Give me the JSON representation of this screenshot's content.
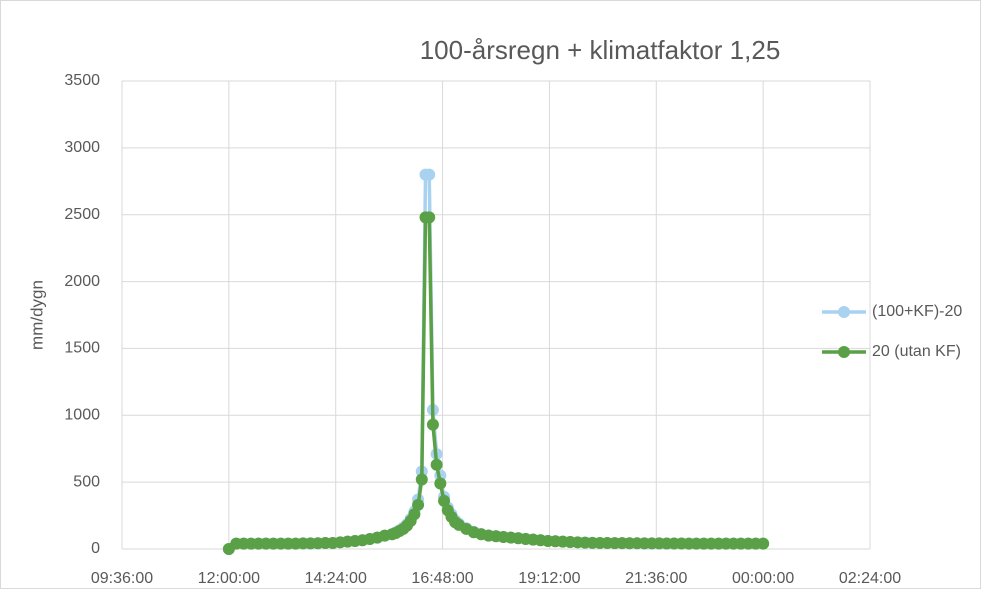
{
  "chart_data": {
    "type": "line",
    "title": "100-årsregn + klimatfaktor 1,25",
    "y_label": "mm/dygn",
    "x": [
      720,
      730,
      740,
      750,
      760,
      770,
      780,
      790,
      800,
      810,
      820,
      830,
      840,
      850,
      860,
      870,
      880,
      890,
      900,
      910,
      920,
      930,
      940,
      945,
      950,
      955,
      960,
      965,
      970,
      975,
      980,
      985,
      990,
      995,
      1000,
      1005,
      1010,
      1015,
      1020,
      1025,
      1030,
      1040,
      1050,
      1060,
      1070,
      1080,
      1090,
      1100,
      1110,
      1120,
      1130,
      1140,
      1150,
      1160,
      1170,
      1180,
      1190,
      1200,
      1210,
      1220,
      1230,
      1240,
      1250,
      1260,
      1270,
      1280,
      1290,
      1300,
      1310,
      1320,
      1330,
      1340,
      1350,
      1360,
      1370,
      1380,
      1390,
      1400,
      1410,
      1420,
      1430,
      1440
    ],
    "series": [
      {
        "name": "(100+KF)-20",
        "color": "#a9d2f0",
        "values": [
          0,
          40,
          40,
          40,
          40,
          40,
          40,
          40,
          40,
          40,
          42,
          42,
          43,
          45,
          45,
          50,
          55,
          60,
          65,
          75,
          85,
          100,
          110,
          125,
          140,
          160,
          185,
          225,
          280,
          370,
          580,
          2800,
          2800,
          1040,
          710,
          550,
          390,
          310,
          260,
          215,
          190,
          155,
          128,
          112,
          102,
          96,
          91,
          86,
          81,
          76,
          71,
          66,
          61,
          58,
          55,
          52,
          50,
          48,
          46,
          45,
          45,
          44,
          44,
          43,
          43,
          42,
          42,
          42,
          41,
          41,
          41,
          40,
          40,
          40,
          40,
          40,
          40,
          40,
          40,
          40,
          40,
          40
        ]
      },
      {
        "name": "20 (utan KF)",
        "color": "#5aa046",
        "values": [
          0,
          40,
          40,
          40,
          40,
          40,
          40,
          40,
          40,
          40,
          42,
          42,
          43,
          45,
          45,
          50,
          55,
          60,
          65,
          75,
          85,
          100,
          110,
          120,
          135,
          150,
          175,
          210,
          260,
          330,
          520,
          2480,
          2480,
          930,
          630,
          490,
          360,
          290,
          240,
          200,
          180,
          150,
          125,
          110,
          100,
          95,
          90,
          85,
          80,
          75,
          70,
          65,
          60,
          58,
          55,
          52,
          50,
          48,
          46,
          45,
          45,
          44,
          44,
          43,
          43,
          42,
          42,
          42,
          41,
          41,
          41,
          40,
          40,
          40,
          40,
          40,
          40,
          40,
          40,
          40,
          40,
          40
        ]
      }
    ],
    "xlim": [
      576,
      1584
    ],
    "xticks": [
      {
        "value": 576,
        "label": "09:36:00"
      },
      {
        "value": 720,
        "label": "12:00:00"
      },
      {
        "value": 864,
        "label": "14:24:00"
      },
      {
        "value": 1008,
        "label": "16:48:00"
      },
      {
        "value": 1152,
        "label": "19:12:00"
      },
      {
        "value": 1296,
        "label": "21:36:00"
      },
      {
        "value": 1440,
        "label": "00:00:00"
      },
      {
        "value": 1584,
        "label": "02:24:00"
      }
    ],
    "ylim": [
      0,
      3500
    ],
    "yticks": [
      0,
      500,
      1000,
      1500,
      2000,
      2500,
      3000,
      3500
    ],
    "grid": true,
    "legend": "right"
  }
}
